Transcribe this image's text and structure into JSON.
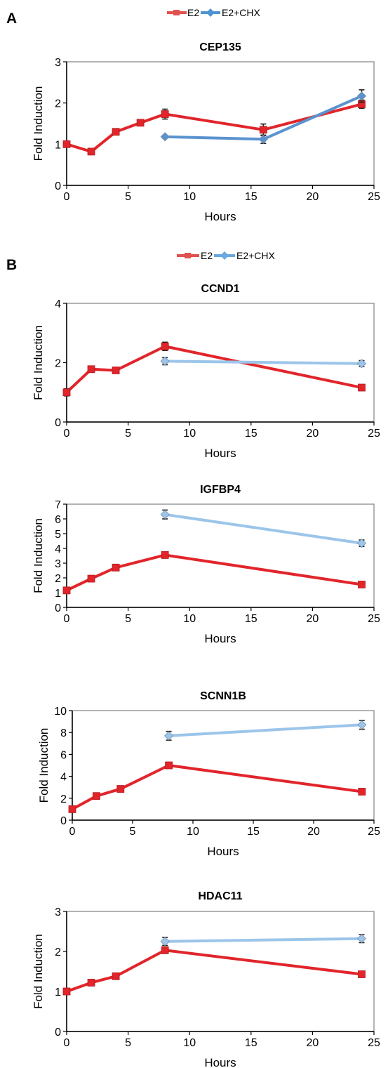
{
  "panels": [
    "A",
    "B"
  ],
  "legend": {
    "e2_label": "E2",
    "chx_label": "E2+CHX",
    "e2_color_a": "#e0524f",
    "chx_color_a": "#4f93d2",
    "e2_color_b": "#e0524f",
    "chx_color_b": "#6aa8e0"
  },
  "chart_data": [
    {
      "type": "line",
      "title": "CEP135",
      "xlabel": "Hours",
      "ylabel": "Fold Induction",
      "xlim": [
        0,
        25
      ],
      "ylim": [
        0,
        3
      ],
      "xticks": [
        0,
        5,
        10,
        15,
        20,
        25
      ],
      "yticks": [
        0,
        1,
        2,
        3
      ],
      "series": [
        {
          "name": "E2",
          "color": "#e1252b",
          "marker": "square",
          "x": [
            0,
            2,
            4,
            6,
            8,
            16,
            24
          ],
          "y": [
            1.0,
            0.82,
            1.3,
            1.52,
            1.73,
            1.35,
            1.97
          ],
          "err": [
            0.04,
            0.04,
            0.05,
            0.07,
            0.12,
            0.14,
            0.1
          ]
        },
        {
          "name": "E2+CHX",
          "color": "#5a93cf",
          "marker": "diamond",
          "x": [
            8,
            16,
            24
          ],
          "y": [
            1.18,
            1.12,
            2.17
          ],
          "err": [
            0.03,
            0.1,
            0.15
          ]
        }
      ]
    },
    {
      "type": "line",
      "title": "CCND1",
      "xlabel": "Hours",
      "ylabel": "Fold Induction",
      "xlim": [
        0,
        25
      ],
      "ylim": [
        0,
        4
      ],
      "xticks": [
        0,
        5,
        10,
        15,
        20,
        25
      ],
      "yticks": [
        0,
        2,
        4
      ],
      "series": [
        {
          "name": "E2",
          "color": "#e1252b",
          "marker": "square",
          "x": [
            0,
            2,
            4,
            8,
            24
          ],
          "y": [
            1.0,
            1.78,
            1.74,
            2.55,
            1.16
          ],
          "err": [
            0.12,
            0.08,
            0.09,
            0.14,
            0.1
          ]
        },
        {
          "name": "E2+CHX",
          "color": "#9cc5ea",
          "marker": "diamond",
          "x": [
            8,
            24
          ],
          "y": [
            2.05,
            1.97
          ],
          "err": [
            0.12,
            0.1
          ]
        }
      ]
    },
    {
      "type": "line",
      "title": "IGFBP4",
      "xlabel": "Hours",
      "ylabel": "Fold Induction",
      "xlim": [
        0,
        25
      ],
      "ylim": [
        0,
        7
      ],
      "xticks": [
        0,
        5,
        10,
        15,
        20,
        25
      ],
      "yticks": [
        0,
        1,
        2,
        3,
        4,
        5,
        6,
        7
      ],
      "series": [
        {
          "name": "E2",
          "color": "#e1252b",
          "marker": "square",
          "x": [
            0,
            2,
            4,
            8,
            24
          ],
          "y": [
            1.15,
            1.95,
            2.7,
            3.55,
            1.55
          ],
          "err": [
            0.12,
            0.15,
            0.12,
            0.15,
            0.12
          ]
        },
        {
          "name": "E2+CHX",
          "color": "#9cc5ea",
          "marker": "diamond",
          "x": [
            8,
            24
          ],
          "y": [
            6.3,
            4.35
          ],
          "err": [
            0.3,
            0.22
          ]
        }
      ]
    },
    {
      "type": "line",
      "title": "SCNN1B",
      "xlabel": "Hours",
      "ylabel": "Fold Induction",
      "xlim": [
        0,
        25
      ],
      "ylim": [
        0,
        10
      ],
      "xticks": [
        0,
        5,
        10,
        15,
        20,
        25
      ],
      "yticks": [
        0,
        2,
        4,
        6,
        8,
        10
      ],
      "series": [
        {
          "name": "E2",
          "color": "#e1252b",
          "marker": "square",
          "x": [
            0,
            2,
            4,
            8,
            24
          ],
          "y": [
            1.0,
            2.2,
            2.85,
            5.0,
            2.6
          ],
          "err": [
            0.12,
            0.15,
            0.15,
            0.18,
            0.15
          ]
        },
        {
          "name": "E2+CHX",
          "color": "#9cc5ea",
          "marker": "diamond",
          "x": [
            8,
            24
          ],
          "y": [
            7.7,
            8.7
          ],
          "err": [
            0.4,
            0.4
          ]
        }
      ]
    },
    {
      "type": "line",
      "title": "HDAC11",
      "xlabel": "Hours",
      "ylabel": "Fold Induction",
      "xlim": [
        0,
        25
      ],
      "ylim": [
        0,
        3
      ],
      "xticks": [
        0,
        5,
        10,
        15,
        20,
        25
      ],
      "yticks": [
        0,
        1,
        2,
        3
      ],
      "series": [
        {
          "name": "E2",
          "color": "#e1252b",
          "marker": "square",
          "x": [
            0,
            2,
            4,
            8,
            24
          ],
          "y": [
            1.0,
            1.22,
            1.38,
            2.03,
            1.43
          ],
          "err": [
            0.05,
            0.05,
            0.05,
            0.08,
            0.05
          ]
        },
        {
          "name": "E2+CHX",
          "color": "#9cc5ea",
          "marker": "diamond",
          "x": [
            8,
            24
          ],
          "y": [
            2.25,
            2.32
          ],
          "err": [
            0.1,
            0.1
          ]
        }
      ]
    }
  ]
}
